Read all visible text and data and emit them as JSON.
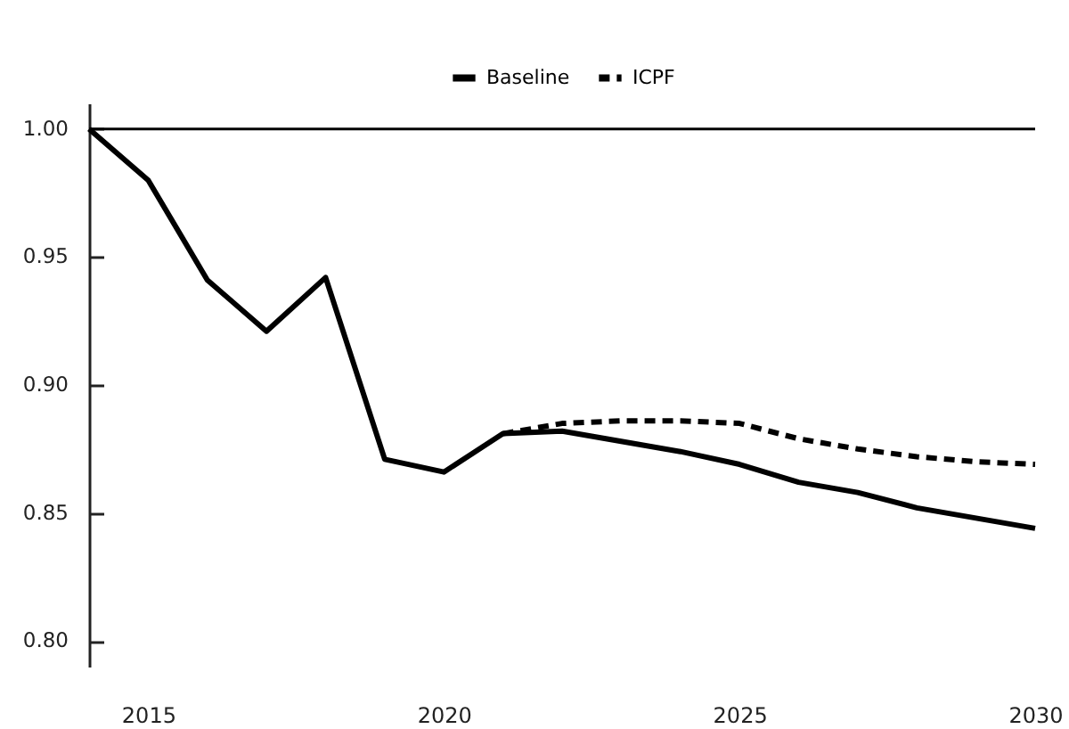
{
  "chart_data": {
    "type": "line",
    "x": [
      2014,
      2015,
      2016,
      2017,
      2018,
      2019,
      2020,
      2021,
      2022,
      2023,
      2024,
      2025,
      2026,
      2027,
      2028,
      2029,
      2030
    ],
    "series": [
      {
        "name": "Baseline",
        "color": "#000000",
        "line_style": "solid",
        "values": [
          1.0,
          0.98,
          0.941,
          0.921,
          0.942,
          0.871,
          0.866,
          0.881,
          0.882,
          0.878,
          0.874,
          0.869,
          0.862,
          0.858,
          0.852,
          0.848,
          0.844
        ]
      },
      {
        "name": "ICPF",
        "color": "#000000",
        "line_style": "dashed",
        "x": [
          2021,
          2022,
          2023,
          2024,
          2025,
          2026,
          2027,
          2028,
          2029,
          2030
        ],
        "values": [
          0.881,
          0.885,
          0.886,
          0.886,
          0.885,
          0.879,
          0.875,
          0.872,
          0.87,
          0.869
        ]
      }
    ],
    "xlim": [
      2014,
      2030
    ],
    "xticks": [
      2015,
      2020,
      2025,
      2030
    ],
    "ylim": [
      0.79,
      1.01
    ],
    "yticks": [
      {
        "value": 0.8,
        "label": "0.80"
      },
      {
        "value": 0.85,
        "label": "0.85"
      },
      {
        "value": 0.9,
        "label": "0.90"
      },
      {
        "value": 0.95,
        "label": "0.95"
      },
      {
        "value": 1.0,
        "label": "1.00"
      }
    ],
    "ref_lines": [
      {
        "axis": "y",
        "value": 1.0,
        "color": "#000000"
      }
    ],
    "legend": "top",
    "grid": false
  }
}
